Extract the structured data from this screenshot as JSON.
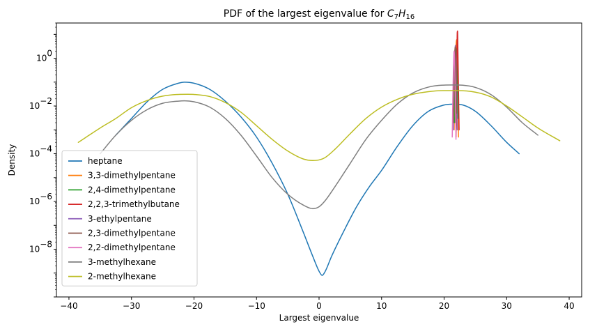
{
  "chart_data": {
    "type": "line",
    "title": "PDF of the largest eigenvalue for C7H16",
    "title_parts": {
      "prefix": "PDF of the largest eigenvalue for ",
      "c": "C",
      "c_sub": "7",
      "h": "H",
      "h_sub": "16"
    },
    "xlabel": "Largest eigenvalue",
    "ylabel": "Density",
    "xlim": [
      -42,
      42
    ],
    "ylim": [
      1e-10,
      30
    ],
    "yscale": "log",
    "xticks": [
      -40,
      -30,
      -20,
      -10,
      0,
      10,
      20,
      30,
      40
    ],
    "xtick_labels": [
      "−40",
      "−30",
      "−20",
      "−10",
      "0",
      "10",
      "20",
      "30",
      "40"
    ],
    "yticks": [
      {
        "exp": -8,
        "label": "10",
        "sup": "−8"
      },
      {
        "exp": -6,
        "label": "10",
        "sup": "−6"
      },
      {
        "exp": -4,
        "label": "10",
        "sup": "−4"
      },
      {
        "exp": -2,
        "label": "10",
        "sup": "−2"
      },
      {
        "exp": 0,
        "label": "10",
        "sup": "0"
      }
    ],
    "grid": false,
    "legend_position": "lower-left",
    "series": [
      {
        "name": "heptane",
        "color": "#1f77b4",
        "x": [
          -32.5,
          -30,
          -27.5,
          -25,
          -22.5,
          -21.5,
          -20,
          -17.5,
          -15,
          -12.5,
          -10,
          -7.5,
          -5,
          -2.5,
          -1,
          0,
          0.5,
          1,
          2,
          4,
          6,
          8,
          10,
          12.5,
          15,
          17.5,
          20,
          21.5,
          23,
          25,
          27.5,
          30,
          32
        ],
        "y": [
          0.0006,
          0.003,
          0.015,
          0.05,
          0.09,
          0.1,
          0.09,
          0.05,
          0.016,
          0.0035,
          0.0005,
          4e-05,
          2e-06,
          5e-08,
          5e-09,
          1.2e-09,
          8e-10,
          1.2e-09,
          5e-09,
          6e-08,
          6e-07,
          4e-06,
          2e-05,
          0.0002,
          0.0015,
          0.006,
          0.011,
          0.012,
          0.011,
          0.006,
          0.0015,
          0.0003,
          0.0001
        ]
      },
      {
        "name": "3,3-dimethylpentane",
        "color": "#ff7f0e",
        "x": [
          21.6,
          21.7,
          21.8,
          21.9,
          22.0,
          22.1,
          22.2,
          22.3
        ],
        "y": [
          0.001,
          0.05,
          0.5,
          3.0,
          6.0,
          1.0,
          0.05,
          0.0005
        ]
      },
      {
        "name": "2,4-dimethylpentane",
        "color": "#2ca02c",
        "x": [
          21.7,
          21.8,
          21.9,
          22.0,
          22.1,
          22.2
        ],
        "y": [
          0.002,
          0.1,
          1.5,
          2.5,
          0.2,
          0.003
        ]
      },
      {
        "name": "2,2,3-trimethylbutane",
        "color": "#d62728",
        "x": [
          21.9,
          22.0,
          22.05,
          22.1,
          22.15,
          22.2,
          22.3,
          22.4
        ],
        "y": [
          0.0005,
          0.05,
          1.0,
          12.0,
          14.0,
          3.0,
          0.05,
          0.001
        ]
      },
      {
        "name": "3-ethylpentane",
        "color": "#9467bd",
        "x": [
          21.5,
          21.6,
          21.7,
          21.8,
          21.9,
          22.0,
          22.1
        ],
        "y": [
          0.001,
          0.05,
          0.8,
          3.5,
          1.0,
          0.05,
          0.001
        ]
      },
      {
        "name": "2,3-dimethylpentane",
        "color": "#8c564b",
        "x": [
          21.5,
          21.6,
          21.7,
          21.8,
          21.9,
          22.0
        ],
        "y": [
          0.002,
          0.1,
          1.5,
          3.0,
          0.3,
          0.005
        ]
      },
      {
        "name": "2,2-dimethylpentane",
        "color": "#e377c2",
        "x": [
          21.3,
          21.4,
          21.5,
          21.6,
          21.7,
          21.8,
          21.9
        ],
        "y": [
          0.0005,
          0.03,
          0.5,
          2.0,
          0.5,
          0.02,
          0.0004
        ]
      },
      {
        "name": "3-methylhexane",
        "color": "#7f7f7f",
        "x": [
          -35,
          -32.5,
          -30,
          -27.5,
          -25,
          -22.5,
          -21.5,
          -20,
          -17.5,
          -15,
          -12.5,
          -10,
          -7.5,
          -5,
          -2.5,
          -1,
          0,
          1,
          2.5,
          5,
          7.5,
          10,
          12.5,
          15,
          17.5,
          20,
          21.5,
          23,
          25,
          27.5,
          30,
          32.5,
          35
        ],
        "y": [
          0.0001,
          0.0006,
          0.0025,
          0.007,
          0.013,
          0.016,
          0.0165,
          0.015,
          0.009,
          0.003,
          0.0006,
          8e-05,
          1e-05,
          2e-06,
          7e-07,
          5e-07,
          6e-07,
          1.1e-06,
          4e-06,
          4e-05,
          0.0004,
          0.0025,
          0.012,
          0.035,
          0.062,
          0.075,
          0.076,
          0.074,
          0.06,
          0.03,
          0.009,
          0.002,
          0.0006
        ]
      },
      {
        "name": "2-methylhexane",
        "color": "#bcbd22",
        "x": [
          -38.5,
          -35,
          -32.5,
          -30,
          -27.5,
          -25,
          -22.5,
          -21,
          -20,
          -17.5,
          -15,
          -12.5,
          -10,
          -7.5,
          -5,
          -2.5,
          -1,
          0,
          1,
          2.5,
          5,
          7.5,
          10,
          12.5,
          15,
          17.5,
          20,
          22,
          25,
          27.5,
          30,
          32.5,
          35,
          38.5
        ],
        "y": [
          0.0003,
          0.0012,
          0.003,
          0.0085,
          0.017,
          0.026,
          0.0305,
          0.031,
          0.0305,
          0.025,
          0.014,
          0.0055,
          0.0015,
          0.0004,
          0.00013,
          6e-05,
          5.2e-05,
          5.5e-05,
          7e-05,
          0.00015,
          0.0007,
          0.003,
          0.009,
          0.019,
          0.031,
          0.04,
          0.044,
          0.044,
          0.038,
          0.024,
          0.01,
          0.0035,
          0.0012,
          0.00035
        ]
      }
    ]
  }
}
